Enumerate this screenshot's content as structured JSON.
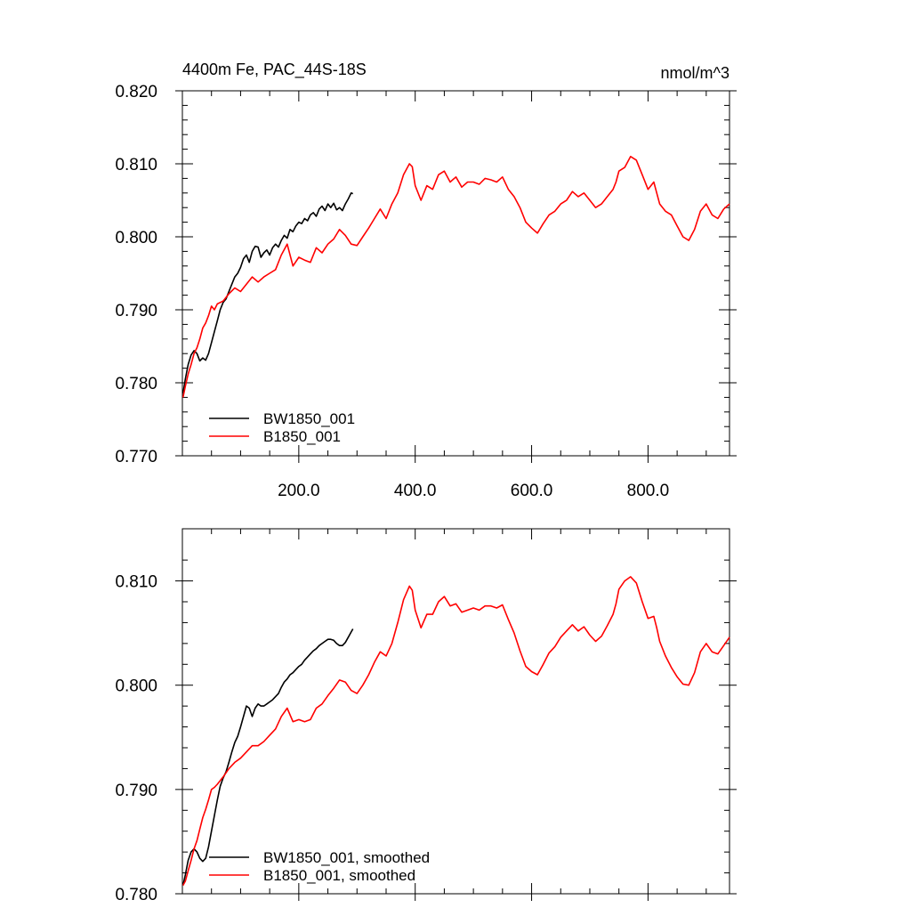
{
  "chart_data": [
    {
      "type": "line",
      "title": "4400m Fe, PAC_44S-18S",
      "units": "nmol/m^3",
      "xlim": [
        0,
        940
      ],
      "ylim": [
        0.77,
        0.82
      ],
      "x_ticks": [
        200,
        400,
        600,
        800
      ],
      "x_tick_labels": [
        "200.0",
        "400.0",
        "600.0",
        "800.0"
      ],
      "y_ticks": [
        0.77,
        0.78,
        0.79,
        0.8,
        0.81,
        0.82
      ],
      "y_tick_labels": [
        "0.770",
        "0.780",
        "0.790",
        "0.800",
        "0.810",
        "0.820"
      ],
      "legend_position": "bottom-left",
      "series": [
        {
          "name": "BW1850_001",
          "color": "#000000",
          "x": [
            1,
            5,
            10,
            15,
            20,
            25,
            30,
            35,
            40,
            45,
            50,
            55,
            60,
            65,
            70,
            75,
            80,
            85,
            90,
            95,
            100,
            105,
            110,
            115,
            120,
            125,
            130,
            135,
            140,
            145,
            150,
            155,
            160,
            165,
            170,
            175,
            180,
            185,
            190,
            195,
            200,
            205,
            210,
            215,
            220,
            225,
            230,
            235,
            240,
            245,
            250,
            255,
            260,
            265,
            270,
            275,
            280,
            285,
            290,
            293
          ],
          "values": [
            0.7785,
            0.7805,
            0.7825,
            0.7838,
            0.7844,
            0.784,
            0.783,
            0.7834,
            0.7831,
            0.784,
            0.7855,
            0.787,
            0.7885,
            0.79,
            0.791,
            0.7915,
            0.7925,
            0.7935,
            0.7945,
            0.795,
            0.7958,
            0.797,
            0.7975,
            0.7965,
            0.798,
            0.7987,
            0.7986,
            0.7972,
            0.7978,
            0.7982,
            0.7975,
            0.7985,
            0.799,
            0.7986,
            0.7995,
            0.8002,
            0.7998,
            0.801,
            0.8007,
            0.8015,
            0.802,
            0.8018,
            0.8025,
            0.8022,
            0.803,
            0.8033,
            0.8028,
            0.8038,
            0.8042,
            0.8036,
            0.8045,
            0.804,
            0.8046,
            0.8037,
            0.804,
            0.8036,
            0.8045,
            0.8052,
            0.806,
            0.8059
          ]
        },
        {
          "name": "B1850_001",
          "color": "#ff0000",
          "x": [
            1,
            5,
            10,
            15,
            20,
            25,
            30,
            35,
            40,
            45,
            50,
            55,
            60,
            70,
            80,
            90,
            100,
            110,
            120,
            130,
            140,
            150,
            160,
            170,
            180,
            190,
            200,
            210,
            220,
            230,
            240,
            250,
            260,
            270,
            280,
            290,
            300,
            310,
            320,
            330,
            340,
            350,
            360,
            370,
            380,
            390,
            395,
            400,
            410,
            420,
            430,
            440,
            450,
            460,
            470,
            480,
            490,
            500,
            510,
            520,
            530,
            540,
            550,
            560,
            570,
            580,
            590,
            600,
            610,
            620,
            630,
            640,
            650,
            660,
            670,
            680,
            690,
            700,
            710,
            720,
            730,
            740,
            745,
            750,
            760,
            770,
            780,
            790,
            800,
            810,
            815,
            820,
            830,
            840,
            850,
            860,
            870,
            880,
            890,
            900,
            910,
            920,
            930,
            940
          ],
          "values": [
            0.778,
            0.7795,
            0.7812,
            0.7825,
            0.784,
            0.7848,
            0.786,
            0.7875,
            0.7882,
            0.7892,
            0.7905,
            0.79,
            0.7908,
            0.7912,
            0.7922,
            0.793,
            0.7925,
            0.7935,
            0.7945,
            0.7938,
            0.7945,
            0.795,
            0.7955,
            0.7975,
            0.799,
            0.796,
            0.7972,
            0.7968,
            0.7965,
            0.7985,
            0.7978,
            0.799,
            0.7997,
            0.801,
            0.8002,
            0.799,
            0.7988,
            0.8,
            0.8012,
            0.8025,
            0.8038,
            0.8025,
            0.8045,
            0.806,
            0.8085,
            0.81,
            0.8096,
            0.807,
            0.805,
            0.807,
            0.8065,
            0.8085,
            0.809,
            0.8075,
            0.8082,
            0.8068,
            0.8075,
            0.8075,
            0.8072,
            0.808,
            0.8078,
            0.8075,
            0.8082,
            0.8065,
            0.8055,
            0.804,
            0.802,
            0.8012,
            0.8005,
            0.8018,
            0.803,
            0.8035,
            0.8045,
            0.805,
            0.8062,
            0.8055,
            0.806,
            0.805,
            0.804,
            0.8045,
            0.8055,
            0.8065,
            0.8075,
            0.809,
            0.8095,
            0.811,
            0.8105,
            0.8085,
            0.8065,
            0.8075,
            0.806,
            0.8045,
            0.8035,
            0.803,
            0.8015,
            0.8,
            0.7995,
            0.801,
            0.8035,
            0.8045,
            0.803,
            0.8025,
            0.8038,
            0.8045
          ]
        }
      ]
    },
    {
      "type": "line",
      "xlim": [
        0,
        940
      ],
      "ylim": [
        0.78,
        0.815
      ],
      "x_ticks": [
        200,
        400,
        600,
        800
      ],
      "y_ticks": [
        0.78,
        0.79,
        0.8,
        0.81
      ],
      "y_tick_labels": [
        "0.780",
        "0.790",
        "0.800",
        "0.810"
      ],
      "legend_position": "bottom-left",
      "series": [
        {
          "name": "BW1850_001, smoothed",
          "color": "#000000",
          "x": [
            1,
            5,
            10,
            15,
            20,
            25,
            30,
            35,
            40,
            45,
            50,
            55,
            60,
            65,
            70,
            75,
            80,
            85,
            90,
            95,
            100,
            105,
            110,
            115,
            120,
            125,
            130,
            135,
            140,
            145,
            150,
            155,
            160,
            165,
            170,
            175,
            180,
            185,
            190,
            195,
            200,
            205,
            210,
            215,
            220,
            225,
            230,
            235,
            240,
            245,
            250,
            255,
            260,
            265,
            270,
            275,
            280,
            285,
            290,
            293
          ],
          "values": [
            0.7808,
            0.7818,
            0.7832,
            0.784,
            0.7843,
            0.784,
            0.7834,
            0.7831,
            0.7834,
            0.7845,
            0.786,
            0.7875,
            0.789,
            0.7903,
            0.7911,
            0.7917,
            0.7926,
            0.7936,
            0.7945,
            0.7951,
            0.796,
            0.797,
            0.798,
            0.7978,
            0.797,
            0.7978,
            0.7982,
            0.798,
            0.798,
            0.7982,
            0.7984,
            0.7986,
            0.7989,
            0.7992,
            0.7998,
            0.8003,
            0.8006,
            0.801,
            0.8012,
            0.8015,
            0.8018,
            0.802,
            0.8024,
            0.8027,
            0.803,
            0.8033,
            0.8035,
            0.8038,
            0.804,
            0.8042,
            0.8044,
            0.8044,
            0.8043,
            0.804,
            0.8038,
            0.8038,
            0.8041,
            0.8046,
            0.8051,
            0.8054
          ]
        },
        {
          "name": "B1850_001, smoothed",
          "color": "#ff0000",
          "x": [
            1,
            5,
            10,
            15,
            20,
            25,
            30,
            35,
            40,
            45,
            50,
            55,
            60,
            70,
            80,
            90,
            100,
            110,
            120,
            130,
            140,
            150,
            160,
            170,
            180,
            190,
            200,
            210,
            220,
            230,
            240,
            250,
            260,
            270,
            280,
            290,
            300,
            310,
            320,
            330,
            340,
            350,
            360,
            370,
            380,
            390,
            395,
            400,
            410,
            420,
            430,
            440,
            450,
            460,
            470,
            480,
            490,
            500,
            510,
            520,
            530,
            540,
            550,
            560,
            570,
            580,
            590,
            600,
            610,
            620,
            630,
            640,
            650,
            660,
            670,
            680,
            690,
            700,
            710,
            720,
            730,
            740,
            745,
            750,
            760,
            770,
            780,
            790,
            800,
            810,
            815,
            820,
            830,
            840,
            850,
            860,
            870,
            880,
            890,
            900,
            910,
            920,
            930,
            940
          ],
          "values": [
            0.7808,
            0.7812,
            0.7822,
            0.7832,
            0.7843,
            0.7851,
            0.7862,
            0.7873,
            0.7881,
            0.789,
            0.79,
            0.7902,
            0.7905,
            0.7912,
            0.792,
            0.7926,
            0.793,
            0.7936,
            0.7942,
            0.7942,
            0.7946,
            0.7952,
            0.7958,
            0.797,
            0.7978,
            0.7965,
            0.7967,
            0.7965,
            0.7967,
            0.7978,
            0.7982,
            0.799,
            0.7997,
            0.8005,
            0.8003,
            0.7995,
            0.7992,
            0.8,
            0.801,
            0.8022,
            0.8032,
            0.8028,
            0.804,
            0.806,
            0.8082,
            0.8095,
            0.8091,
            0.8072,
            0.8055,
            0.8068,
            0.8068,
            0.808,
            0.8085,
            0.8076,
            0.8078,
            0.807,
            0.8072,
            0.8074,
            0.8072,
            0.8076,
            0.8076,
            0.8074,
            0.8077,
            0.8063,
            0.805,
            0.8033,
            0.8018,
            0.8013,
            0.801,
            0.802,
            0.8031,
            0.8037,
            0.8046,
            0.8052,
            0.8058,
            0.8052,
            0.8056,
            0.8048,
            0.8042,
            0.8047,
            0.8057,
            0.8068,
            0.8078,
            0.8092,
            0.81,
            0.8104,
            0.8098,
            0.808,
            0.8064,
            0.8066,
            0.8055,
            0.8042,
            0.8028,
            0.8017,
            0.8008,
            0.8001,
            0.8,
            0.8012,
            0.8032,
            0.804,
            0.8032,
            0.803,
            0.8038,
            0.8046
          ]
        }
      ]
    }
  ]
}
